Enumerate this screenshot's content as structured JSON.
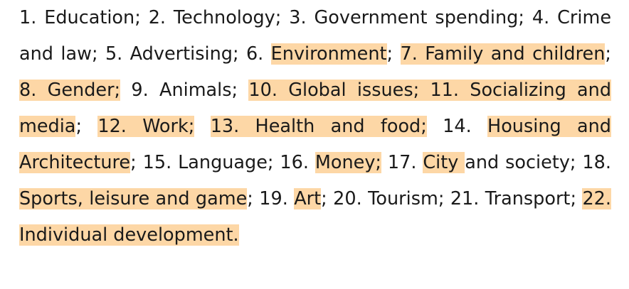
{
  "topics": [
    {
      "text": "1. Education",
      "highlighted": false,
      "sep": "; "
    },
    {
      "text": "2. Technology",
      "highlighted": false,
      "sep": "; "
    },
    {
      "text": "3. Government spending",
      "highlighted": false,
      "sep": "; "
    },
    {
      "text": "4. Crime and law",
      "highlighted": false,
      "sep": "; "
    },
    {
      "text": "5. Advertising",
      "highlighted": false,
      "sep": "; "
    },
    {
      "text": "6. ",
      "highlighted": false,
      "sep": ""
    },
    {
      "text": "Environment",
      "highlighted": true,
      "sep": "; "
    },
    {
      "text": "7. Family and children",
      "highlighted": true,
      "sep": "; "
    },
    {
      "text": "8. Gender;",
      "highlighted": true,
      "sep": " "
    },
    {
      "text": "9. Animals",
      "highlighted": false,
      "sep": "; "
    },
    {
      "text": "10. Global issues;  11. Socializing and media",
      "highlighted": true,
      "sep": "; "
    },
    {
      "text": "12. Work;",
      "highlighted": true,
      "sep": " "
    },
    {
      "text": "13. Health and food;",
      "highlighted": true,
      "sep": " "
    },
    {
      "text": "14. ",
      "highlighted": false,
      "sep": ""
    },
    {
      "text": "Housing and Architecture",
      "highlighted": true,
      "sep": "; "
    },
    {
      "text": "15. Language",
      "highlighted": false,
      "sep": "; "
    },
    {
      "text": "16. ",
      "highlighted": false,
      "sep": ""
    },
    {
      "text": "Money;",
      "highlighted": true,
      "sep": " "
    },
    {
      "text": "17. ",
      "highlighted": false,
      "sep": ""
    },
    {
      "text": "City ",
      "highlighted": true,
      "sep": ""
    },
    {
      "text": "and society",
      "highlighted": false,
      "sep": "; "
    },
    {
      "text": "18. ",
      "highlighted": false,
      "sep": ""
    },
    {
      "text": "Sports, leisure and game",
      "highlighted": true,
      "sep": "; "
    },
    {
      "text": "19. ",
      "highlighted": false,
      "sep": ""
    },
    {
      "text": "Art",
      "highlighted": true,
      "sep": "; "
    },
    {
      "text": "20. Tourism",
      "highlighted": false,
      "sep": "; "
    },
    {
      "text": "21. Transport",
      "highlighted": false,
      "sep": "; "
    },
    {
      "text": "22. Individual development.",
      "highlighted": true,
      "sep": ""
    }
  ],
  "highlight_color": "#fdd7a6",
  "text_color": "#1a1a1a"
}
